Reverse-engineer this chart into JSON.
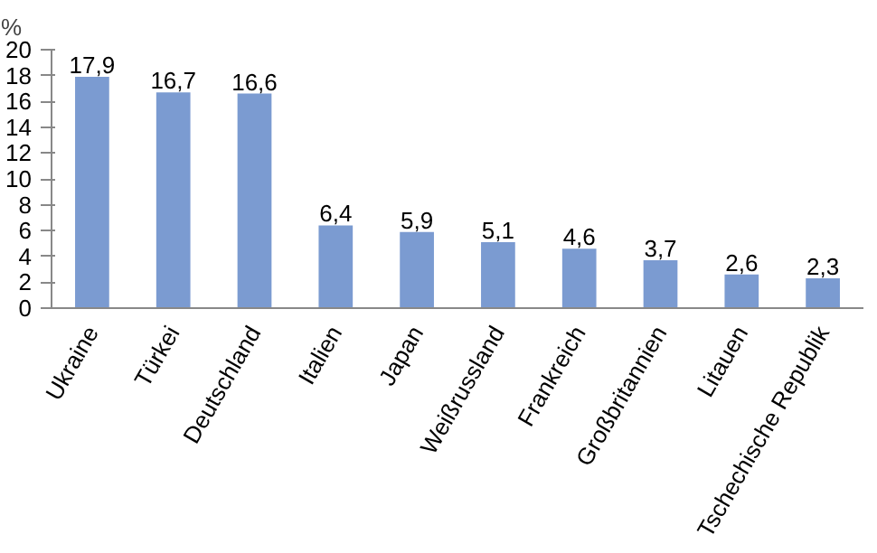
{
  "chart_data": {
    "type": "bar",
    "ylabel": "%",
    "categories": [
      "Ukraine",
      "Türkei",
      "Deutschland",
      "Italien",
      "Japan",
      "Weißrussland",
      "Frankreich",
      "Großbritannien",
      "Litauen",
      "Tschechische Republik"
    ],
    "values": [
      17.9,
      16.7,
      16.6,
      6.4,
      5.9,
      5.1,
      4.6,
      3.7,
      2.6,
      2.3
    ],
    "value_labels": [
      "17,9",
      "16,7",
      "16,6",
      "6,4",
      "5,9",
      "5,1",
      "4,6",
      "3,7",
      "2,6",
      "2,3"
    ],
    "color": "#7b9bd1",
    "ylim": [
      0,
      20
    ],
    "yticks": [
      0,
      2,
      4,
      6,
      8,
      10,
      12,
      14,
      16,
      18,
      20
    ],
    "grid": false
  }
}
